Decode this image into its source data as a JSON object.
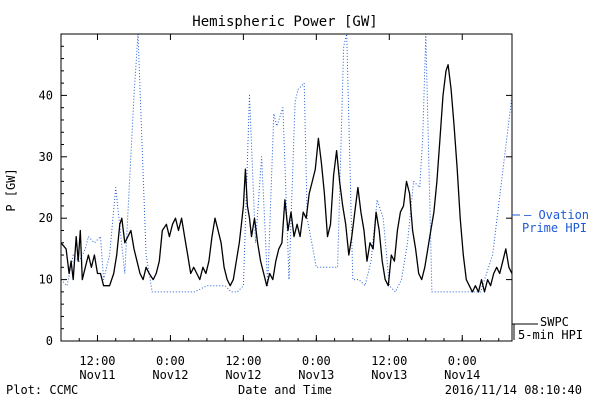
{
  "chart_data": {
    "type": "line",
    "title": "Hemispheric Power [GW]",
    "ylabel": "P [GW]",
    "xlabel": "Date and Time",
    "ylim": [
      0,
      50
    ],
    "yticks": [
      0,
      10,
      20,
      30,
      40
    ],
    "xrange": [
      "2016-11-11T06:00",
      "2016-11-14T08:11"
    ],
    "xticks": [
      {
        "t": "2016-11-11T12:00",
        "time": "12:00",
        "date": "Nov11"
      },
      {
        "t": "2016-11-12T00:00",
        "time": "0:00",
        "date": "Nov12"
      },
      {
        "t": "2016-11-12T12:00",
        "time": "12:00",
        "date": "Nov12"
      },
      {
        "t": "2016-11-13T00:00",
        "time": "0:00",
        "date": "Nov13"
      },
      {
        "t": "2016-11-13T12:00",
        "time": "12:00",
        "date": "Nov13"
      },
      {
        "t": "2016-11-14T00:00",
        "time": "0:00",
        "date": "Nov14"
      }
    ],
    "series": [
      {
        "name": "SWPC 5-min HPI",
        "legend_line1": "SWPC",
        "legend_line2": "5-min HPI",
        "color": "#000000",
        "style": "solid",
        "points": [
          [
            "2016-11-11T06:00",
            16
          ],
          [
            "2016-11-11T06:50",
            15
          ],
          [
            "2016-11-11T07:20",
            11
          ],
          [
            "2016-11-11T07:40",
            13
          ],
          [
            "2016-11-11T08:00",
            10
          ],
          [
            "2016-11-11T08:30",
            17
          ],
          [
            "2016-11-11T08:50",
            13
          ],
          [
            "2016-11-11T09:10",
            18
          ],
          [
            "2016-11-11T09:30",
            10
          ],
          [
            "2016-11-11T10:00",
            12
          ],
          [
            "2016-11-11T10:30",
            14
          ],
          [
            "2016-11-11T11:00",
            12
          ],
          [
            "2016-11-11T11:30",
            14
          ],
          [
            "2016-11-11T12:00",
            11
          ],
          [
            "2016-11-11T12:30",
            11
          ],
          [
            "2016-11-11T13:00",
            9
          ],
          [
            "2016-11-11T14:00",
            9
          ],
          [
            "2016-11-11T14:40",
            11
          ],
          [
            "2016-11-11T15:10",
            14
          ],
          [
            "2016-11-11T15:40",
            19
          ],
          [
            "2016-11-11T16:00",
            20
          ],
          [
            "2016-11-11T16:30",
            16
          ],
          [
            "2016-11-11T17:00",
            17
          ],
          [
            "2016-11-11T17:30",
            18
          ],
          [
            "2016-11-11T18:00",
            15
          ],
          [
            "2016-11-11T18:30",
            13
          ],
          [
            "2016-11-11T19:00",
            11
          ],
          [
            "2016-11-11T19:30",
            10
          ],
          [
            "2016-11-11T20:00",
            12
          ],
          [
            "2016-11-11T20:30",
            11
          ],
          [
            "2016-11-11T21:10",
            10
          ],
          [
            "2016-11-11T21:40",
            11
          ],
          [
            "2016-11-11T22:10",
            13
          ],
          [
            "2016-11-11T22:40",
            18
          ],
          [
            "2016-11-11T23:20",
            19
          ],
          [
            "2016-11-11T23:50",
            17
          ],
          [
            "2016-11-12T00:20",
            19
          ],
          [
            "2016-11-12T00:50",
            20
          ],
          [
            "2016-11-12T01:20",
            18
          ],
          [
            "2016-11-12T01:50",
            20
          ],
          [
            "2016-11-12T02:20",
            17
          ],
          [
            "2016-11-12T02:50",
            14
          ],
          [
            "2016-11-12T03:20",
            11
          ],
          [
            "2016-11-12T03:50",
            12
          ],
          [
            "2016-11-12T04:20",
            11
          ],
          [
            "2016-11-12T04:50",
            10
          ],
          [
            "2016-11-12T05:20",
            12
          ],
          [
            "2016-11-12T05:50",
            11
          ],
          [
            "2016-11-12T06:20",
            13
          ],
          [
            "2016-11-12T06:50",
            17
          ],
          [
            "2016-11-12T07:20",
            20
          ],
          [
            "2016-11-12T07:50",
            18
          ],
          [
            "2016-11-12T08:20",
            16
          ],
          [
            "2016-11-12T08:50",
            12
          ],
          [
            "2016-11-12T09:20",
            10
          ],
          [
            "2016-11-12T09:50",
            9
          ],
          [
            "2016-11-12T10:20",
            10
          ],
          [
            "2016-11-12T10:50",
            13
          ],
          [
            "2016-11-12T11:20",
            16
          ],
          [
            "2016-11-12T11:40",
            19
          ],
          [
            "2016-11-12T12:00",
            22
          ],
          [
            "2016-11-12T12:20",
            28
          ],
          [
            "2016-11-12T12:40",
            22
          ],
          [
            "2016-11-12T13:00",
            20
          ],
          [
            "2016-11-12T13:20",
            17
          ],
          [
            "2016-11-12T13:50",
            20
          ],
          [
            "2016-11-12T14:20",
            16
          ],
          [
            "2016-11-12T14:50",
            13
          ],
          [
            "2016-11-12T15:20",
            11
          ],
          [
            "2016-11-12T15:50",
            9
          ],
          [
            "2016-11-12T16:20",
            11
          ],
          [
            "2016-11-12T16:50",
            10
          ],
          [
            "2016-11-12T17:20",
            13
          ],
          [
            "2016-11-12T17:50",
            15
          ],
          [
            "2016-11-12T18:20",
            16
          ],
          [
            "2016-11-12T18:50",
            23
          ],
          [
            "2016-11-12T19:20",
            18
          ],
          [
            "2016-11-12T19:50",
            21
          ],
          [
            "2016-11-12T20:20",
            17
          ],
          [
            "2016-11-12T20:50",
            19
          ],
          [
            "2016-11-12T21:20",
            17
          ],
          [
            "2016-11-12T21:50",
            21
          ],
          [
            "2016-11-12T22:20",
            20
          ],
          [
            "2016-11-12T22:50",
            24
          ],
          [
            "2016-11-12T23:20",
            26
          ],
          [
            "2016-11-12T23:50",
            28
          ],
          [
            "2016-11-13T00:20",
            33
          ],
          [
            "2016-11-13T00:50",
            29
          ],
          [
            "2016-11-13T01:20",
            24
          ],
          [
            "2016-11-13T01:50",
            17
          ],
          [
            "2016-11-13T02:20",
            19
          ],
          [
            "2016-11-13T02:50",
            27
          ],
          [
            "2016-11-13T03:20",
            31
          ],
          [
            "2016-11-13T03:50",
            26
          ],
          [
            "2016-11-13T04:20",
            22
          ],
          [
            "2016-11-13T04:50",
            19
          ],
          [
            "2016-11-13T05:20",
            14
          ],
          [
            "2016-11-13T05:50",
            17
          ],
          [
            "2016-11-13T06:20",
            21
          ],
          [
            "2016-11-13T06:50",
            25
          ],
          [
            "2016-11-13T07:20",
            21
          ],
          [
            "2016-11-13T07:50",
            18
          ],
          [
            "2016-11-13T08:20",
            13
          ],
          [
            "2016-11-13T08:50",
            16
          ],
          [
            "2016-11-13T09:20",
            15
          ],
          [
            "2016-11-13T09:50",
            21
          ],
          [
            "2016-11-13T10:20",
            18
          ],
          [
            "2016-11-13T10:50",
            13
          ],
          [
            "2016-11-13T11:20",
            10
          ],
          [
            "2016-11-13T11:50",
            9
          ],
          [
            "2016-11-13T12:20",
            14
          ],
          [
            "2016-11-13T12:50",
            13
          ],
          [
            "2016-11-13T13:20",
            18
          ],
          [
            "2016-11-13T13:50",
            21
          ],
          [
            "2016-11-13T14:20",
            22
          ],
          [
            "2016-11-13T14:50",
            26
          ],
          [
            "2016-11-13T15:20",
            24
          ],
          [
            "2016-11-13T15:50",
            18
          ],
          [
            "2016-11-13T16:20",
            15
          ],
          [
            "2016-11-13T16:50",
            11
          ],
          [
            "2016-11-13T17:20",
            10
          ],
          [
            "2016-11-13T17:50",
            12
          ],
          [
            "2016-11-13T18:20",
            15
          ],
          [
            "2016-11-13T18:50",
            18
          ],
          [
            "2016-11-13T19:20",
            21
          ],
          [
            "2016-11-13T19:50",
            26
          ],
          [
            "2016-11-13T20:20",
            33
          ],
          [
            "2016-11-13T20:50",
            40
          ],
          [
            "2016-11-13T21:20",
            44
          ],
          [
            "2016-11-13T21:40",
            45
          ],
          [
            "2016-11-13T22:10",
            41
          ],
          [
            "2016-11-13T22:40",
            35
          ],
          [
            "2016-11-13T23:10",
            28
          ],
          [
            "2016-11-13T23:40",
            20
          ],
          [
            "2016-11-14T00:10",
            14
          ],
          [
            "2016-11-14T00:40",
            10
          ],
          [
            "2016-11-14T01:10",
            9
          ],
          [
            "2016-11-14T01:40",
            8
          ],
          [
            "2016-11-14T02:10",
            9
          ],
          [
            "2016-11-14T02:40",
            8
          ],
          [
            "2016-11-14T03:10",
            10
          ],
          [
            "2016-11-14T03:40",
            8
          ],
          [
            "2016-11-14T04:10",
            10
          ],
          [
            "2016-11-14T04:40",
            9
          ],
          [
            "2016-11-14T05:10",
            11
          ],
          [
            "2016-11-14T05:40",
            12
          ],
          [
            "2016-11-14T06:10",
            11
          ],
          [
            "2016-11-14T06:40",
            13
          ],
          [
            "2016-11-14T07:10",
            15
          ],
          [
            "2016-11-14T07:40",
            12
          ],
          [
            "2016-11-14T08:10",
            11
          ]
        ]
      },
      {
        "name": "Ovation Prime HPI",
        "legend_line1": "– Ovation",
        "legend_line2": "Prime HPI",
        "color": "#1f5bd6",
        "style": "dotted",
        "points": [
          [
            "2016-11-11T06:00",
            10
          ],
          [
            "2016-11-11T07:00",
            9
          ],
          [
            "2016-11-11T08:00",
            14
          ],
          [
            "2016-11-11T09:00",
            13
          ],
          [
            "2016-11-11T10:00",
            15
          ],
          [
            "2016-11-11T10:30",
            17
          ],
          [
            "2016-11-11T11:30",
            16
          ],
          [
            "2016-11-11T12:30",
            17
          ],
          [
            "2016-11-11T13:00",
            10
          ],
          [
            "2016-11-11T14:00",
            14
          ],
          [
            "2016-11-11T15:00",
            25
          ],
          [
            "2016-11-11T16:30",
            11
          ],
          [
            "2016-11-11T18:00",
            40
          ],
          [
            "2016-11-11T18:40",
            50
          ],
          [
            "2016-11-11T20:00",
            14
          ],
          [
            "2016-11-11T21:00",
            8
          ],
          [
            "2016-11-12T00:00",
            8
          ],
          [
            "2016-11-12T04:00",
            8
          ],
          [
            "2016-11-12T06:00",
            9
          ],
          [
            "2016-11-12T09:00",
            9
          ],
          [
            "2016-11-12T10:00",
            8
          ],
          [
            "2016-11-12T11:00",
            8
          ],
          [
            "2016-11-12T12:00",
            9
          ],
          [
            "2016-11-12T13:00",
            40
          ],
          [
            "2016-11-12T14:00",
            16
          ],
          [
            "2016-11-12T15:00",
            30
          ],
          [
            "2016-11-12T16:00",
            9
          ],
          [
            "2016-11-12T17:00",
            37
          ],
          [
            "2016-11-12T17:30",
            35
          ],
          [
            "2016-11-12T18:30",
            38
          ],
          [
            "2016-11-12T19:30",
            10
          ],
          [
            "2016-11-12T20:30",
            39
          ],
          [
            "2016-11-12T21:00",
            41
          ],
          [
            "2016-11-12T22:00",
            42
          ],
          [
            "2016-11-12T22:30",
            20
          ],
          [
            "2016-11-13T00:00",
            12
          ],
          [
            "2016-11-13T03:30",
            12
          ],
          [
            "2016-11-13T04:30",
            48
          ],
          [
            "2016-11-13T05:00",
            50
          ],
          [
            "2016-11-13T06:00",
            10
          ],
          [
            "2016-11-13T07:00",
            10
          ],
          [
            "2016-11-13T08:00",
            9
          ],
          [
            "2016-11-13T09:00",
            13
          ],
          [
            "2016-11-13T10:00",
            23
          ],
          [
            "2016-11-13T11:00",
            20
          ],
          [
            "2016-11-13T12:00",
            9
          ],
          [
            "2016-11-13T13:00",
            8
          ],
          [
            "2016-11-13T14:00",
            10
          ],
          [
            "2016-11-13T15:00",
            16
          ],
          [
            "2016-11-13T16:00",
            26
          ],
          [
            "2016-11-13T17:00",
            25
          ],
          [
            "2016-11-13T17:30",
            33
          ],
          [
            "2016-11-13T18:00",
            50
          ],
          [
            "2016-11-13T19:00",
            8
          ],
          [
            "2016-11-13T21:00",
            8
          ],
          [
            "2016-11-14T00:00",
            8
          ],
          [
            "2016-11-14T03:00",
            8
          ],
          [
            "2016-11-14T05:00",
            14
          ],
          [
            "2016-11-14T08:11",
            40
          ]
        ]
      }
    ],
    "footer_left": "Plot: CCMC",
    "footer_right": "2016/11/14 08:10:40"
  }
}
